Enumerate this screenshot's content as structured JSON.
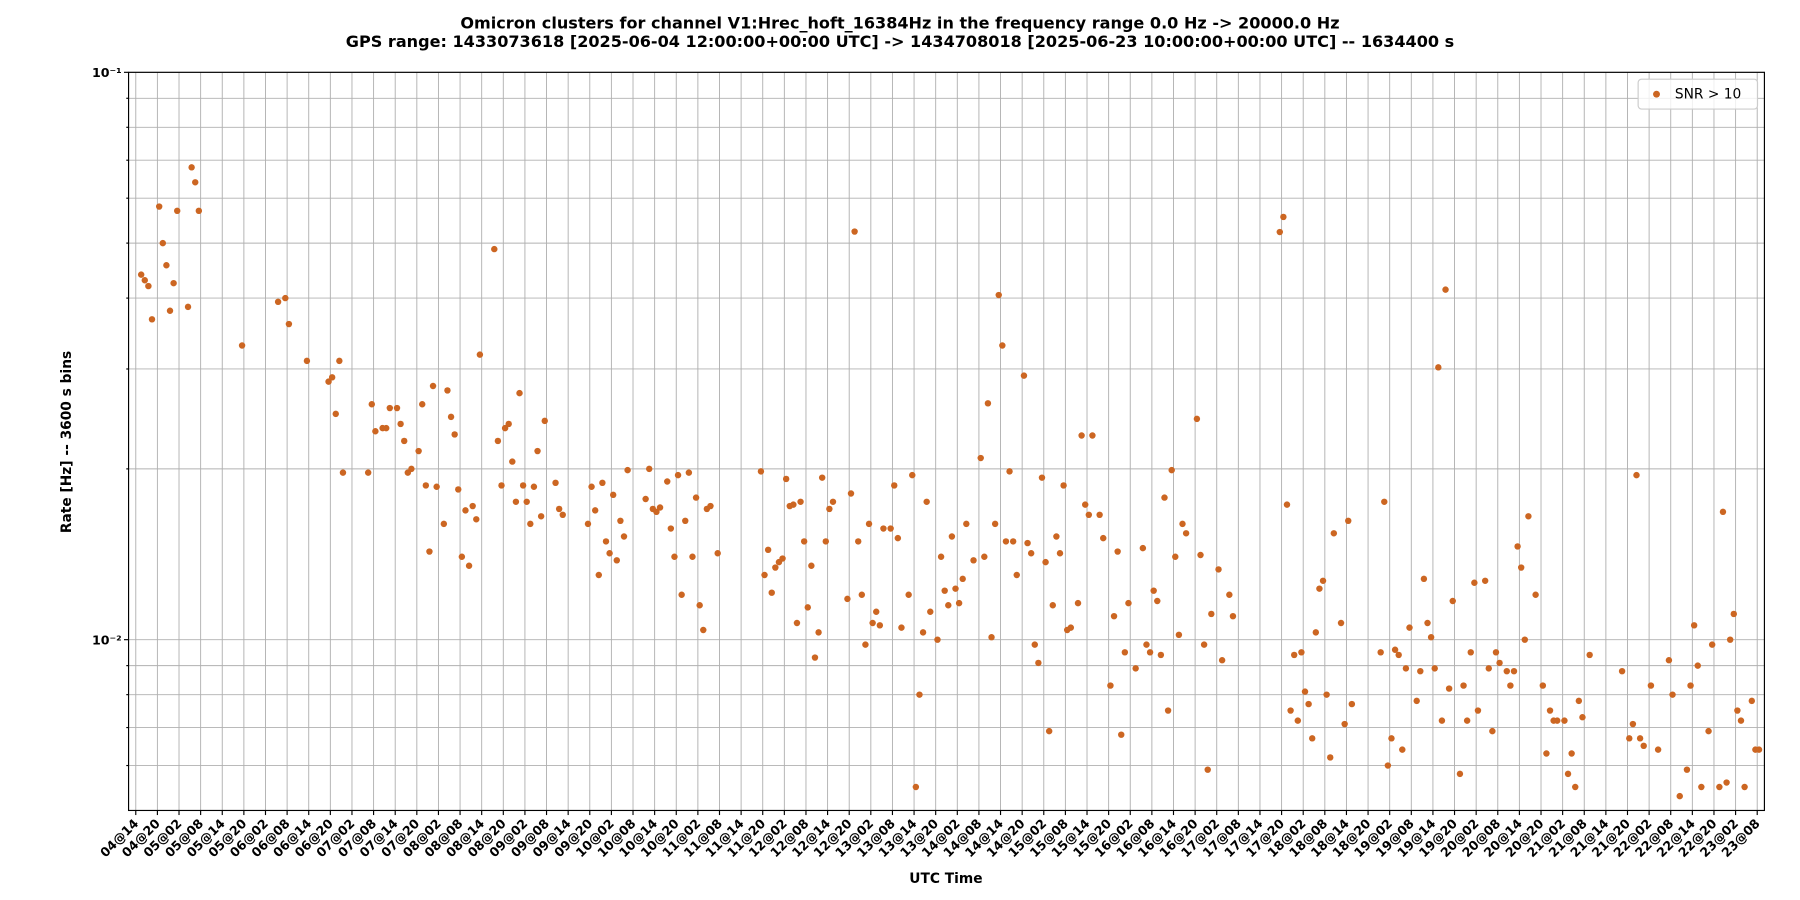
{
  "chart_data": {
    "type": "scatter",
    "title": "Omicron clusters for channel V1:Hrec_hoft_16384Hz in the frequency range 0.0 Hz -> 20000.0 Hz",
    "subtitle": "GPS range: 1433073618 [2025-06-04 12:00:00+00:00 UTC] -> 1434708018 [2025-06-23 10:00:00+00:00 UTC] -- 1634400 s",
    "xlabel": "UTC Time",
    "ylabel": "Rate [Hz] -- 3600 s bins",
    "yscale": "log",
    "grid": true,
    "legend": "upper right",
    "xlim": [
      1433073618,
      1434708018
    ],
    "ylim": [
      0.005,
      0.1
    ],
    "yticks": [
      {
        "value": 0.01,
        "label": "10⁻²"
      },
      {
        "value": 0.1,
        "label": "10⁻¹"
      }
    ],
    "yminorticks": [
      0.006,
      0.007,
      0.008,
      0.009,
      0.02,
      0.03,
      0.04,
      0.05,
      0.06,
      0.07,
      0.08,
      0.09
    ],
    "xticks": [
      {
        "value": 1433080818,
        "label": "04@14"
      },
      {
        "value": 1433102418,
        "label": "04@20"
      },
      {
        "value": 1433124018,
        "label": "05@02"
      },
      {
        "value": 1433145618,
        "label": "05@08"
      },
      {
        "value": 1433167218,
        "label": "05@14"
      },
      {
        "value": 1433188818,
        "label": "05@20"
      },
      {
        "value": 1433210418,
        "label": "06@02"
      },
      {
        "value": 1433232018,
        "label": "06@08"
      },
      {
        "value": 1433253618,
        "label": "06@14"
      },
      {
        "value": 1433275218,
        "label": "06@20"
      },
      {
        "value": 1433296818,
        "label": "07@02"
      },
      {
        "value": 1433318418,
        "label": "07@08"
      },
      {
        "value": 1433340018,
        "label": "07@14"
      },
      {
        "value": 1433361618,
        "label": "07@20"
      },
      {
        "value": 1433383218,
        "label": "08@02"
      },
      {
        "value": 1433404818,
        "label": "08@08"
      },
      {
        "value": 1433426418,
        "label": "08@14"
      },
      {
        "value": 1433448018,
        "label": "08@20"
      },
      {
        "value": 1433469618,
        "label": "09@02"
      },
      {
        "value": 1433491218,
        "label": "09@08"
      },
      {
        "value": 1433512818,
        "label": "09@14"
      },
      {
        "value": 1433534418,
        "label": "09@20"
      },
      {
        "value": 1433556018,
        "label": "10@02"
      },
      {
        "value": 1433577618,
        "label": "10@08"
      },
      {
        "value": 1433599218,
        "label": "10@14"
      },
      {
        "value": 1433620818,
        "label": "10@20"
      },
      {
        "value": 1433642418,
        "label": "11@02"
      },
      {
        "value": 1433664018,
        "label": "11@08"
      },
      {
        "value": 1433685618,
        "label": "11@14"
      },
      {
        "value": 1433707218,
        "label": "11@20"
      },
      {
        "value": 1433728818,
        "label": "12@02"
      },
      {
        "value": 1433750418,
        "label": "12@08"
      },
      {
        "value": 1433772018,
        "label": "12@14"
      },
      {
        "value": 1433793618,
        "label": "12@20"
      },
      {
        "value": 1433815218,
        "label": "13@02"
      },
      {
        "value": 1433836818,
        "label": "13@08"
      },
      {
        "value": 1433858418,
        "label": "13@14"
      },
      {
        "value": 1433880018,
        "label": "13@20"
      },
      {
        "value": 1433901618,
        "label": "14@02"
      },
      {
        "value": 1433923218,
        "label": "14@08"
      },
      {
        "value": 1433944818,
        "label": "14@14"
      },
      {
        "value": 1433966418,
        "label": "14@20"
      },
      {
        "value": 1433988018,
        "label": "15@02"
      },
      {
        "value": 1434009618,
        "label": "15@08"
      },
      {
        "value": 1434031218,
        "label": "15@14"
      },
      {
        "value": 1434052818,
        "label": "15@20"
      },
      {
        "value": 1434074418,
        "label": "16@02"
      },
      {
        "value": 1434096018,
        "label": "16@08"
      },
      {
        "value": 1434117618,
        "label": "16@14"
      },
      {
        "value": 1434139218,
        "label": "16@20"
      },
      {
        "value": 1434160818,
        "label": "17@02"
      },
      {
        "value": 1434182418,
        "label": "17@08"
      },
      {
        "value": 1434204018,
        "label": "17@14"
      },
      {
        "value": 1434225618,
        "label": "17@20"
      },
      {
        "value": 1434247218,
        "label": "18@02"
      },
      {
        "value": 1434268818,
        "label": "18@08"
      },
      {
        "value": 1434290418,
        "label": "18@14"
      },
      {
        "value": 1434312018,
        "label": "18@20"
      },
      {
        "value": 1434333618,
        "label": "19@02"
      },
      {
        "value": 1434355218,
        "label": "19@08"
      },
      {
        "value": 1434376818,
        "label": "19@14"
      },
      {
        "value": 1434398418,
        "label": "19@20"
      },
      {
        "value": 1434420018,
        "label": "20@02"
      },
      {
        "value": 1434441618,
        "label": "20@08"
      },
      {
        "value": 1434463218,
        "label": "20@14"
      },
      {
        "value": 1434484818,
        "label": "20@20"
      },
      {
        "value": 1434506418,
        "label": "21@02"
      },
      {
        "value": 1434528018,
        "label": "21@08"
      },
      {
        "value": 1434549618,
        "label": "21@14"
      },
      {
        "value": 1434571218,
        "label": "21@20"
      },
      {
        "value": 1434592818,
        "label": "22@02"
      },
      {
        "value": 1434614418,
        "label": "22@08"
      },
      {
        "value": 1434636018,
        "label": "22@14"
      },
      {
        "value": 1434657618,
        "label": "22@20"
      },
      {
        "value": 1434679218,
        "label": "23@02"
      },
      {
        "value": 1434700818,
        "label": "23@08"
      }
    ],
    "series": [
      {
        "name": "SNR > 10",
        "color": "#cc6622",
        "x": [
          1433086218,
          1433089818,
          1433093418,
          1433097018,
          1433104218,
          1433107818,
          1433111418,
          1433115018,
          1433118618,
          1433122218,
          1433133018,
          1433136618,
          1433140218,
          1433143818,
          1433187018,
          1433223018,
          1433230218,
          1433233818,
          1433251818,
          1433273418,
          1433277018,
          1433280618,
          1433284218,
          1433287818,
          1433313018,
          1433316618,
          1433320218,
          1433327418,
          1433331018,
          1433334618,
          1433341818,
          1433345418,
          1433349018,
          1433352618,
          1433356218,
          1433363418,
          1433367018,
          1433370618,
          1433374218,
          1433377818,
          1433381418,
          1433388618,
          1433392218,
          1433395818,
          1433399418,
          1433403018,
          1433406618,
          1433410218,
          1433413818,
          1433417418,
          1433421018,
          1433424618,
          1433439018,
          1433442618,
          1433446218,
          1433449818,
          1433453418,
          1433457018,
          1433460618,
          1433464218,
          1433467818,
          1433471418,
          1433475018,
          1433478618,
          1433482218,
          1433485818,
          1433489418,
          1433500218,
          1433503818,
          1433507418,
          1433532618,
          1433536218,
          1433539818,
          1433543418,
          1433547018,
          1433550618,
          1433554218,
          1433557818,
          1433561418,
          1433565018,
          1433568618,
          1433572218,
          1433590218,
          1433593818,
          1433597418,
          1433601018,
          1433604618,
          1433611818,
          1433615418,
          1433619018,
          1433622618,
          1433626218,
          1433629818,
          1433633418,
          1433637018,
          1433640618,
          1433644218,
          1433647818,
          1433651418,
          1433655018,
          1433662218,
          1433705418,
          1433709018,
          1433712618,
          1433716218,
          1433719818,
          1433723418,
          1433727018,
          1433730618,
          1433734218,
          1433737818,
          1433741418,
          1433745018,
          1433748618,
          1433752218,
          1433755818,
          1433759418,
          1433763018,
          1433766618,
          1433770218,
          1433773818,
          1433777418,
          1433791818,
          1433795418,
          1433799018,
          1433802618,
          1433806218,
          1433809818,
          1433813418,
          1433817018,
          1433820618,
          1433824218,
          1433827818,
          1433835018,
          1433838618,
          1433842218,
          1433845818,
          1433853018,
          1433856618,
          1433860218,
          1433863818,
          1433867418,
          1433871018,
          1433874618,
          1433881818,
          1433885418,
          1433889018,
          1433892618,
          1433896218,
          1433899818,
          1433903418,
          1433907018,
          1433910618,
          1433917818,
          1433925018,
          1433928618,
          1433932218,
          1433935818,
          1433939418,
          1433943018,
          1433946618,
          1433950218,
          1433953818,
          1433957418,
          1433961018,
          1433968218,
          1433971818,
          1433975418,
          1433979018,
          1433982618,
          1433986218,
          1433989818,
          1433993418,
          1433997018,
          1434000618,
          1434004218,
          1434007818,
          1434011418,
          1434015018,
          1434022218,
          1434025818,
          1434029418,
          1434033018,
          1434036618,
          1434043818,
          1434047418,
          1434054618,
          1434058218,
          1434061818,
          1434065418,
          1434069018,
          1434072618,
          1434079818,
          1434087018,
          1434090618,
          1434094218,
          1434097818,
          1434101418,
          1434105018,
          1434108618,
          1434112218,
          1434115818,
          1434119418,
          1434123018,
          1434126618,
          1434130218,
          1434141018,
          1434144618,
          1434148218,
          1434151818,
          1434155418,
          1434162618,
          1434166218,
          1434173418,
          1434177018,
          1434223818,
          1434227418,
          1434231018,
          1434234618,
          1434238218,
          1434241818,
          1434245418,
          1434249018,
          1434252618,
          1434256218,
          1434259818,
          1434263418,
          1434267018,
          1434270618,
          1434274218,
          1434277818,
          1434285018,
          1434288618,
          1434292218,
          1434295818,
          1434324618,
          1434328218,
          1434331818,
          1434335418,
          1434339018,
          1434342618,
          1434346218,
          1434349818,
          1434353418,
          1434360618,
          1434364218,
          1434367818,
          1434371418,
          1434375018,
          1434378618,
          1434382218,
          1434385818,
          1434389418,
          1434393018,
          1434396618,
          1434403818,
          1434407418,
          1434411018,
          1434414618,
          1434418218,
          1434421818,
          1434429018,
          1434432618,
          1434436218,
          1434439818,
          1434443418,
          1434450618,
          1434454218,
          1434457818,
          1434461418,
          1434465018,
          1434468618,
          1434472218,
          1434479418,
          1434486618,
          1434490218,
          1434493818,
          1434497418,
          1434501018,
          1434508218,
          1434511818,
          1434515418,
          1434519018,
          1434522618,
          1434526218,
          1434533418,
          1434565818,
          1434573018,
          1434576618,
          1434580218,
          1434583818,
          1434587418,
          1434594618,
          1434601818,
          1434612618,
          1434616218,
          1434623418,
          1434630618,
          1434634218,
          1434637818,
          1434641418,
          1434645018,
          1434652218,
          1434655818,
          1434663018,
          1434666618,
          1434670218,
          1434673818,
          1434677418,
          1434681018,
          1434684618,
          1434688218,
          1434695418,
          1434699018,
          1434702618
        ],
        "values": [
          0.044,
          0.043,
          0.042,
          0.0367,
          0.058,
          0.05,
          0.0457,
          0.038,
          0.0425,
          0.057,
          0.0386,
          0.068,
          0.064,
          0.057,
          0.033,
          0.0394,
          0.04,
          0.036,
          0.031,
          0.0285,
          0.029,
          0.025,
          0.031,
          0.0197,
          0.0197,
          0.026,
          0.0233,
          0.0236,
          0.0236,
          0.0256,
          0.0256,
          0.024,
          0.0224,
          0.0197,
          0.02,
          0.0215,
          0.026,
          0.0187,
          0.0143,
          0.028,
          0.0186,
          0.016,
          0.0275,
          0.0247,
          0.023,
          0.0184,
          0.014,
          0.0169,
          0.0135,
          0.0172,
          0.0163,
          0.0318,
          0.0488,
          0.0224,
          0.0187,
          0.0236,
          0.024,
          0.0206,
          0.0175,
          0.0272,
          0.0187,
          0.0175,
          0.016,
          0.0186,
          0.0215,
          0.0165,
          0.0243,
          0.0189,
          0.017,
          0.0166,
          0.016,
          0.0186,
          0.0169,
          0.013,
          0.0189,
          0.0149,
          0.0142,
          0.018,
          0.0138,
          0.0162,
          0.0152,
          0.0199,
          0.0177,
          0.02,
          0.017,
          0.0168,
          0.0171,
          0.019,
          0.0157,
          0.014,
          0.0195,
          0.012,
          0.0162,
          0.0197,
          0.014,
          0.0178,
          0.0115,
          0.0104,
          0.017,
          0.0172,
          0.0142,
          0.0198,
          0.013,
          0.0144,
          0.0121,
          0.0134,
          0.0137,
          0.0139,
          0.0192,
          0.0172,
          0.0173,
          0.0107,
          0.0175,
          0.0149,
          0.0114,
          0.0135,
          0.0093,
          0.0103,
          0.0193,
          0.0149,
          0.017,
          0.0175,
          0.0118,
          0.0181,
          0.0524,
          0.0149,
          0.012,
          0.0098,
          0.016,
          0.0107,
          0.0112,
          0.0106,
          0.0157,
          0.0157,
          0.0187,
          0.0151,
          0.0105,
          0.012,
          0.0195,
          0.0055,
          0.008,
          0.0103,
          0.0175,
          0.0112,
          0.01,
          0.014,
          0.0122,
          0.0115,
          0.0152,
          0.0123,
          0.0116,
          0.0128,
          0.016,
          0.0138,
          0.0209,
          0.014,
          0.0261,
          0.0101,
          0.016,
          0.0405,
          0.033,
          0.0149,
          0.0198,
          0.0149,
          0.013,
          0.0292,
          0.0148,
          0.0142,
          0.0098,
          0.0091,
          0.0193,
          0.0137,
          0.0069,
          0.0115,
          0.0152,
          0.0142,
          0.0187,
          0.0104,
          0.0105,
          0.0116,
          0.0229,
          0.0173,
          0.0166,
          0.0229,
          0.0166,
          0.0151,
          0.0083,
          0.011,
          0.0143,
          0.0068,
          0.0095,
          0.0116,
          0.0089,
          0.0145,
          0.0098,
          0.0095,
          0.0122,
          0.0117,
          0.0094,
          0.0178,
          0.0075,
          0.0199,
          0.014,
          0.0102,
          0.016,
          0.0154,
          0.0245,
          0.0141,
          0.0098,
          0.0059,
          0.0111,
          0.0133,
          0.0092,
          0.012,
          0.011,
          0.0523,
          0.0556,
          0.0173,
          0.0075,
          0.0094,
          0.0072,
          0.0095,
          0.0081,
          0.0077,
          0.0067,
          0.0103,
          0.0123,
          0.0127,
          0.008,
          0.0062,
          0.0154,
          0.0107,
          0.0071,
          0.0162,
          0.0077,
          0.0095,
          0.0175,
          0.006,
          0.0067,
          0.0096,
          0.0094,
          0.0064,
          0.0089,
          0.0105,
          0.0078,
          0.0088,
          0.0128,
          0.0107,
          0.0101,
          0.0089,
          0.0302,
          0.0072,
          0.0414,
          0.0082,
          0.0117,
          0.0058,
          0.0083,
          0.0072,
          0.0095,
          0.0126,
          0.0075,
          0.0127,
          0.0089,
          0.0069,
          0.0095,
          0.0091,
          0.0088,
          0.0083,
          0.0088,
          0.0146,
          0.0134,
          0.01,
          0.0165,
          0.012,
          0.0083,
          0.0063,
          0.0075,
          0.0072,
          0.0072,
          0.0072,
          0.0058,
          0.0063,
          0.0055,
          0.0078,
          0.0073,
          0.0094,
          0.0088,
          0.0067,
          0.0071,
          0.0195,
          0.0067,
          0.0065,
          0.0083,
          0.0064,
          0.0092,
          0.008,
          0.0053,
          0.0059,
          0.0083,
          0.0106,
          0.009,
          0.0055,
          0.0069,
          0.0098,
          0.0055,
          0.0168,
          0.0056,
          0.01,
          0.0111,
          0.0075,
          0.0072,
          0.0055,
          0.0078,
          0.0064,
          0.0064
        ]
      }
    ]
  }
}
